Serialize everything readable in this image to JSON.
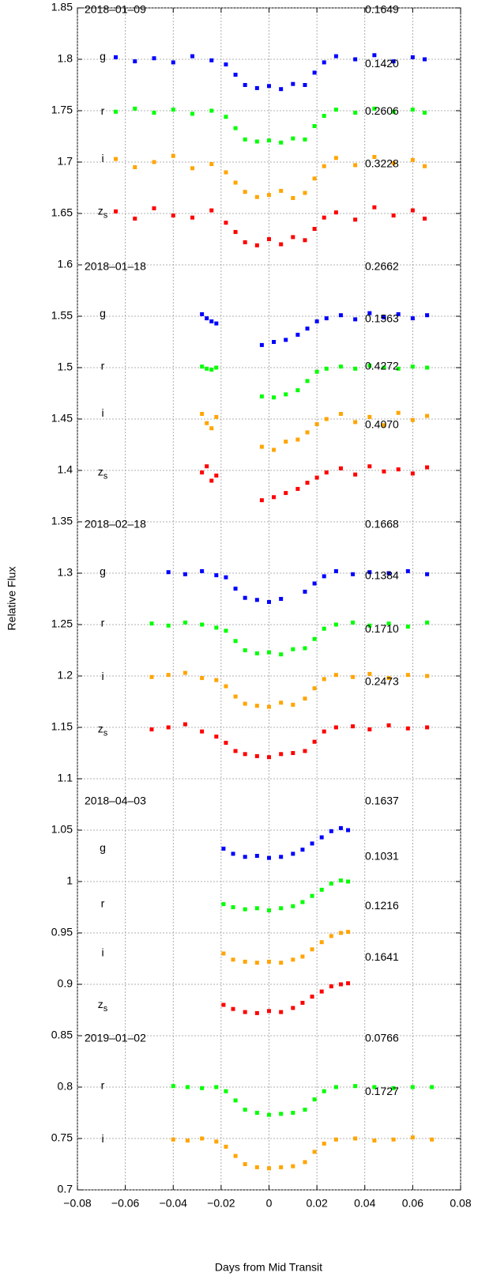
{
  "chart_data": {
    "type": "scatter",
    "xlabel": "Days from Mid Transit",
    "ylabel": "Relative Flux",
    "xlim": [
      -0.08,
      0.08
    ],
    "ylim": [
      0.7,
      1.85
    ],
    "grid": true,
    "xticks": [
      {
        "value": -0.08,
        "label": "−0.08"
      },
      {
        "value": -0.06,
        "label": "−0.06"
      },
      {
        "value": -0.04,
        "label": "−0.04"
      },
      {
        "value": -0.02,
        "label": "−0.02"
      },
      0,
      0.02,
      0.04,
      0.06,
      0.08
    ],
    "yticks": [
      0.7,
      0.75,
      0.8,
      0.85,
      0.9,
      0.95,
      1,
      1.05,
      1.1,
      1.15,
      1.2,
      1.25,
      1.3,
      1.35,
      1.4,
      1.45,
      1.5,
      1.55,
      1.6,
      1.65,
      1.7,
      1.75,
      1.8,
      1.85
    ],
    "panels": [
      {
        "date": "2018–01–09",
        "x": [
          -0.064,
          -0.056,
          -0.048,
          -0.04,
          -0.032,
          -0.024,
          -0.018,
          -0.014,
          -0.01,
          -0.005,
          0,
          0.005,
          0.01,
          0.015,
          0.019,
          0.023,
          0.028,
          0.036,
          0.044,
          0.052,
          0.06,
          0.065
        ],
        "series": [
          {
            "name": "g",
            "color": "#0000ff",
            "rms": "0.1649",
            "values": [
              1.802,
              1.798,
              1.801,
              1.797,
              1.803,
              1.799,
              1.795,
              1.785,
              1.775,
              1.772,
              1.774,
              1.771,
              1.776,
              1.775,
              1.787,
              1.797,
              1.803,
              1.8,
              1.804,
              1.798,
              1.802,
              1.8
            ]
          },
          {
            "name": "r",
            "color": "#00ff00",
            "rms": "0.1420",
            "values": [
              1.749,
              1.752,
              1.748,
              1.751,
              1.747,
              1.75,
              1.744,
              1.733,
              1.722,
              1.72,
              1.721,
              1.719,
              1.723,
              1.722,
              1.735,
              1.745,
              1.751,
              1.748,
              1.752,
              1.749,
              1.751,
              1.748
            ]
          },
          {
            "name": "i",
            "color": "#ffa500",
            "rms": "0.2606",
            "values": [
              1.703,
              1.695,
              1.7,
              1.706,
              1.694,
              1.698,
              1.69,
              1.68,
              1.671,
              1.666,
              1.668,
              1.672,
              1.665,
              1.67,
              1.684,
              1.696,
              1.704,
              1.697,
              1.705,
              1.699,
              1.702,
              1.696
            ]
          },
          {
            "name": "zs",
            "color": "#ff0000",
            "rms": "0.3228",
            "values": [
              1.652,
              1.645,
              1.655,
              1.648,
              1.646,
              1.653,
              1.641,
              1.632,
              1.622,
              1.619,
              1.625,
              1.62,
              1.627,
              1.624,
              1.635,
              1.646,
              1.651,
              1.644,
              1.656,
              1.648,
              1.653,
              1.645
            ]
          }
        ]
      },
      {
        "date": "2018–01–18",
        "x": [
          -0.028,
          -0.026,
          -0.024,
          -0.022,
          -0.003,
          0.002,
          0.007,
          0.012,
          0.016,
          0.02,
          0.024,
          0.03,
          0.036,
          0.042,
          0.048,
          0.054,
          0.06,
          0.066
        ],
        "series": [
          {
            "name": "g",
            "color": "#0000ff",
            "rms": "0.2662",
            "values": [
              1.552,
              1.548,
              1.545,
              1.543,
              1.522,
              1.525,
              1.527,
              1.532,
              1.538,
              1.545,
              1.548,
              1.551,
              1.547,
              1.553,
              1.549,
              1.552,
              1.548,
              1.551
            ]
          },
          {
            "name": "r",
            "color": "#00ff00",
            "rms": "0.1563",
            "values": [
              1.501,
              1.499,
              1.498,
              1.5,
              1.472,
              1.471,
              1.474,
              1.478,
              1.487,
              1.496,
              1.499,
              1.501,
              1.499,
              1.502,
              1.5,
              1.499,
              1.501,
              1.5
            ]
          },
          {
            "name": "i",
            "color": "#ffa500",
            "rms": "0.4272",
            "values": [
              1.455,
              1.446,
              1.441,
              1.452,
              1.423,
              1.42,
              1.428,
              1.43,
              1.437,
              1.445,
              1.45,
              1.455,
              1.447,
              1.452,
              1.444,
              1.456,
              1.449,
              1.453
            ]
          },
          {
            "name": "zs",
            "color": "#ff0000",
            "rms": "0.4070",
            "values": [
              1.398,
              1.404,
              1.39,
              1.395,
              1.371,
              1.374,
              1.378,
              1.382,
              1.388,
              1.393,
              1.398,
              1.402,
              1.396,
              1.404,
              1.399,
              1.401,
              1.397,
              1.403
            ]
          }
        ]
      },
      {
        "date": "2018–02–18",
        "x": [
          -0.049,
          -0.042,
          -0.035,
          -0.028,
          -0.022,
          -0.018,
          -0.014,
          -0.01,
          -0.005,
          0,
          0.005,
          0.01,
          0.015,
          0.019,
          0.023,
          0.028,
          0.035,
          0.042,
          0.05,
          0.058,
          0.066
        ],
        "series": [
          {
            "name": "g",
            "color": "#0000ff",
            "rms": "0.1668",
            "values": [
              null,
              1.301,
              1.299,
              1.302,
              1.298,
              1.296,
              1.285,
              1.276,
              1.274,
              1.272,
              1.275,
              null,
              1.282,
              1.29,
              1.297,
              1.302,
              1.299,
              1.301,
              1.3,
              1.302,
              1.299
            ]
          },
          {
            "name": "r",
            "color": "#00ff00",
            "rms": "0.1384",
            "values": [
              1.251,
              1.249,
              1.252,
              1.25,
              1.247,
              1.244,
              1.234,
              1.225,
              1.222,
              1.223,
              1.221,
              1.226,
              1.227,
              1.236,
              1.246,
              1.25,
              1.252,
              1.249,
              1.251,
              1.248,
              1.252
            ]
          },
          {
            "name": "i",
            "color": "#ffa500",
            "rms": "0.1710",
            "values": [
              1.199,
              1.201,
              1.203,
              1.198,
              1.196,
              1.19,
              1.18,
              1.173,
              1.171,
              1.17,
              1.174,
              1.172,
              1.178,
              1.188,
              1.197,
              1.201,
              1.199,
              1.202,
              1.198,
              1.201,
              1.2
            ]
          },
          {
            "name": "zs",
            "color": "#ff0000",
            "rms": "0.2473",
            "values": [
              1.148,
              1.15,
              1.153,
              1.146,
              1.141,
              1.135,
              1.127,
              1.124,
              1.122,
              1.121,
              1.124,
              1.125,
              1.127,
              1.136,
              1.146,
              1.15,
              1.151,
              1.148,
              1.152,
              1.149,
              1.15
            ]
          }
        ]
      },
      {
        "date": "2018–04–03",
        "x": [
          -0.019,
          -0.015,
          -0.01,
          -0.005,
          0,
          0.005,
          0.01,
          0.014,
          0.018,
          0.022,
          0.026,
          0.03,
          0.033
        ],
        "series": [
          {
            "name": "g",
            "color": "#0000ff",
            "rms": "0.1637",
            "values": [
              1.032,
              1.027,
              1.024,
              1.025,
              1.023,
              1.024,
              1.027,
              1.031,
              1.037,
              1.043,
              1.049,
              1.052,
              1.05
            ]
          },
          {
            "name": "r",
            "color": "#00ff00",
            "rms": "0.1031",
            "values": [
              0.978,
              0.975,
              0.973,
              0.974,
              0.972,
              0.974,
              0.976,
              0.98,
              0.986,
              0.992,
              0.998,
              1.001,
              1.0
            ]
          },
          {
            "name": "i",
            "color": "#ffa500",
            "rms": "0.1216",
            "values": [
              0.93,
              0.924,
              0.922,
              0.921,
              0.922,
              0.921,
              0.924,
              0.927,
              0.934,
              0.941,
              0.947,
              0.95,
              0.951
            ]
          },
          {
            "name": "zs",
            "color": "#ff0000",
            "rms": "0.1641",
            "values": [
              0.88,
              0.876,
              0.873,
              0.872,
              0.874,
              0.873,
              0.877,
              0.882,
              0.888,
              0.893,
              0.898,
              0.9,
              0.901
            ]
          }
        ]
      },
      {
        "date": "2019–01–02",
        "x": [
          -0.04,
          -0.034,
          -0.028,
          -0.022,
          -0.018,
          -0.014,
          -0.01,
          -0.005,
          0,
          0.005,
          0.01,
          0.015,
          0.019,
          0.023,
          0.028,
          0.036,
          0.044,
          0.052,
          0.06,
          0.068
        ],
        "series": [
          {
            "name": "r",
            "color": "#00ff00",
            "rms": "0.0766",
            "values": [
              0.801,
              0.8,
              0.799,
              0.8,
              0.796,
              0.787,
              0.778,
              0.775,
              0.773,
              0.774,
              0.775,
              0.778,
              0.788,
              0.796,
              0.8,
              0.801,
              0.8,
              0.799,
              0.8,
              0.8
            ]
          },
          {
            "name": "i",
            "color": "#ffa500",
            "rms": "0.1727",
            "values": [
              0.749,
              0.748,
              0.75,
              0.747,
              0.742,
              0.733,
              0.725,
              0.722,
              0.721,
              0.722,
              0.723,
              0.727,
              0.737,
              0.745,
              0.749,
              0.75,
              0.748,
              0.749,
              0.751,
              0.749
            ]
          }
        ]
      }
    ]
  }
}
